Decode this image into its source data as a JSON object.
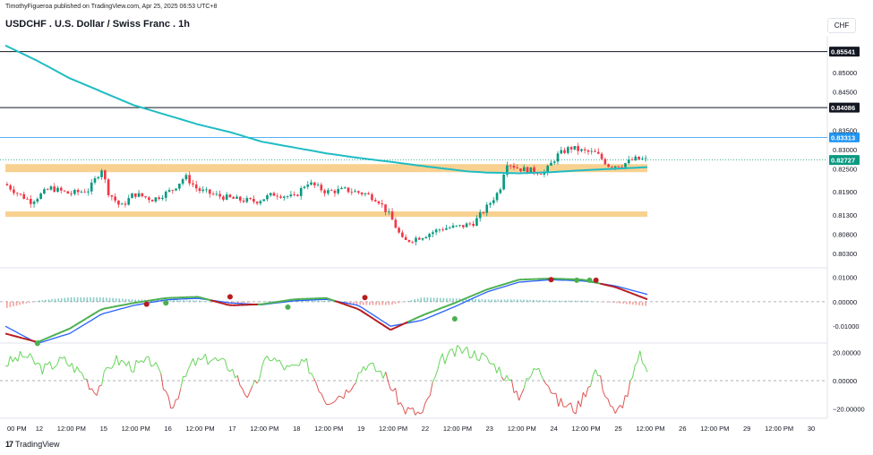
{
  "header": {
    "published_line": "TimothyFigueroa published on TradingView.com, Apr 25, 2025 06:53 UTC+8",
    "title": "USDCHF . U.S. Dollar / Swiss Franc . 1h",
    "currency": "CHF"
  },
  "footer": {
    "brand": "TradingView"
  },
  "colors": {
    "up": "#089981",
    "down": "#f23645",
    "ma": "#1fbcc3",
    "zone": "#f7c97e",
    "macd_fast": "#4caf50",
    "macd_slow": "#2962ff",
    "signal_red": "#b71c1c",
    "osc_up": "#66d55a",
    "osc_down": "#e05555",
    "level_blue": "#2196f3"
  },
  "chart_data": [
    {
      "type": "candlestick",
      "symbol": "USDCHF",
      "interval": "1h",
      "ylim": [
        0.7995,
        0.8595
      ],
      "y_ticks": [
        0.85,
        0.845,
        0.835,
        0.83,
        0.825,
        0.819,
        0.813,
        0.808,
        0.803
      ],
      "y_tick_labels": [
        "0.85000",
        "0.84500",
        "0.83500",
        "0.83000",
        "0.82500",
        "0.81900",
        "0.81300",
        "0.80800",
        "0.80300"
      ],
      "horizontal_levels": [
        {
          "value": 0.85541,
          "label": "0.85541",
          "style": "black"
        },
        {
          "value": 0.84086,
          "label": "0.84086",
          "style": "black"
        },
        {
          "value": 0.83313,
          "label": "0.83313",
          "style": "blue"
        }
      ],
      "last_price": {
        "value": 0.82727,
        "label": "0.82727"
      },
      "support_zones": [
        {
          "from": 0.8241,
          "to": 0.8262
        },
        {
          "from": 0.8125,
          "to": 0.8139
        }
      ],
      "moving_average": {
        "t": [
          0,
          0.05,
          0.1,
          0.15,
          0.2,
          0.25,
          0.3,
          0.35,
          0.4,
          0.45,
          0.5,
          0.55,
          0.6,
          0.65,
          0.7,
          0.72,
          0.75,
          0.78,
          0.8,
          0.85,
          0.9,
          0.95,
          1.0
        ],
        "v": [
          0.857,
          0.853,
          0.8485,
          0.845,
          0.8415,
          0.839,
          0.8365,
          0.8345,
          0.832,
          0.8305,
          0.829,
          0.8278,
          0.8268,
          0.8257,
          0.8247,
          0.8243,
          0.824,
          0.8239,
          0.8238,
          0.8241,
          0.8246,
          0.825,
          0.8254
        ]
      },
      "price_path": {
        "t": [
          0,
          0.02,
          0.04,
          0.07,
          0.1,
          0.13,
          0.15,
          0.16,
          0.18,
          0.2,
          0.23,
          0.26,
          0.28,
          0.3,
          0.33,
          0.36,
          0.39,
          0.42,
          0.45,
          0.47,
          0.5,
          0.53,
          0.56,
          0.58,
          0.6,
          0.62,
          0.65,
          0.68,
          0.71,
          0.73,
          0.75,
          0.77,
          0.78,
          0.8,
          0.82,
          0.84,
          0.86,
          0.88,
          0.9,
          0.92,
          0.94,
          0.96,
          0.98,
          1.0
        ],
        "v": [
          0.821,
          0.8185,
          0.8165,
          0.82,
          0.8185,
          0.8195,
          0.825,
          0.819,
          0.815,
          0.8185,
          0.817,
          0.8195,
          0.823,
          0.8195,
          0.818,
          0.817,
          0.8165,
          0.8185,
          0.8175,
          0.8215,
          0.819,
          0.8195,
          0.8185,
          0.817,
          0.8125,
          0.806,
          0.8075,
          0.8095,
          0.81,
          0.811,
          0.815,
          0.8195,
          0.8268,
          0.825,
          0.8245,
          0.824,
          0.8285,
          0.8305,
          0.8295,
          0.829,
          0.8258,
          0.826,
          0.8275,
          0.8273
        ]
      },
      "x_labels": [
        "00 PM",
        "12",
        "12:00 PM",
        "15",
        "12:00 PM",
        "16",
        "12:00 PM",
        "17",
        "12:00 PM",
        "18",
        "12:00 PM",
        "19",
        "12:00 PM",
        "22",
        "12:00 PM",
        "23",
        "12:00 PM",
        "24",
        "12:00 PM",
        "25",
        "12:00 PM",
        "26",
        "12:00 PM",
        "29",
        "12:00 PM",
        "30"
      ]
    },
    {
      "type": "line",
      "name": "macd-pane",
      "ylim": [
        -0.0165,
        0.0135
      ],
      "y_ticks": [
        0.01,
        0.0,
        -0.01
      ],
      "y_tick_labels": [
        "0.01000",
        "0.00000",
        "-0.01000"
      ],
      "t": [
        0,
        0.05,
        0.1,
        0.15,
        0.2,
        0.25,
        0.3,
        0.35,
        0.4,
        0.45,
        0.5,
        0.55,
        0.6,
        0.65,
        0.7,
        0.75,
        0.8,
        0.85,
        0.9,
        0.95,
        1.0
      ],
      "fast": [
        -0.013,
        -0.0165,
        -0.011,
        -0.003,
        -0.0005,
        0.0015,
        0.002,
        -0.0015,
        -0.001,
        0.001,
        0.0015,
        -0.003,
        -0.0115,
        -0.0055,
        -0.0005,
        0.005,
        0.009,
        0.0095,
        0.009,
        0.006,
        0.001
      ],
      "slow": [
        -0.01,
        -0.017,
        -0.013,
        -0.005,
        -0.0015,
        0.0008,
        0.0014,
        -0.0005,
        -0.0012,
        0.0004,
        0.001,
        -0.0015,
        -0.01,
        -0.0075,
        -0.002,
        0.004,
        0.008,
        0.009,
        0.0085,
        0.0065,
        0.003
      ],
      "signal_markers": [
        {
          "t": 0.05,
          "v": -0.017,
          "kind": "up"
        },
        {
          "t": 0.22,
          "v": -0.001,
          "kind": "down"
        },
        {
          "t": 0.25,
          "v": -0.0005,
          "kind": "up"
        },
        {
          "t": 0.35,
          "v": 0.002,
          "kind": "down"
        },
        {
          "t": 0.44,
          "v": -0.0022,
          "kind": "up"
        },
        {
          "t": 0.56,
          "v": 0.0017,
          "kind": "down"
        },
        {
          "t": 0.7,
          "v": -0.007,
          "kind": "up"
        },
        {
          "t": 0.85,
          "v": 0.009,
          "kind": "down"
        },
        {
          "t": 0.89,
          "v": 0.0088,
          "kind": "up"
        },
        {
          "t": 0.91,
          "v": 0.0088,
          "kind": "up"
        },
        {
          "t": 0.92,
          "v": 0.0088,
          "kind": "down"
        }
      ]
    },
    {
      "type": "line",
      "name": "oscillator-pane",
      "ylim": [
        -26,
        26
      ],
      "y_ticks": [
        20,
        0,
        -20
      ],
      "y_tick_labels": [
        "20.00000",
        "0.00000",
        "−20.00000"
      ],
      "t": [
        0,
        0.03,
        0.06,
        0.09,
        0.12,
        0.14,
        0.17,
        0.2,
        0.23,
        0.26,
        0.29,
        0.32,
        0.35,
        0.38,
        0.41,
        0.44,
        0.47,
        0.5,
        0.53,
        0.56,
        0.59,
        0.62,
        0.65,
        0.68,
        0.71,
        0.74,
        0.77,
        0.8,
        0.83,
        0.86,
        0.89,
        0.92,
        0.95,
        0.97,
        0.99,
        1.0
      ],
      "v": [
        12,
        18,
        8,
        15,
        5,
        -8,
        15,
        10,
        14,
        -18,
        12,
        16,
        10,
        -12,
        18,
        8,
        12,
        -14,
        -8,
        12,
        5,
        -20,
        -24,
        15,
        22,
        18,
        8,
        -10,
        12,
        -15,
        -20,
        8,
        -25,
        -8,
        20,
        2
      ]
    }
  ]
}
